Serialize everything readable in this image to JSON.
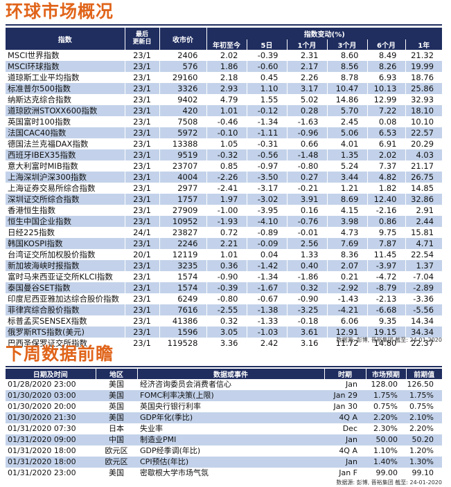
{
  "market": {
    "title": "环球市场概况",
    "headers": {
      "index": "指数",
      "last_update": "最后\n更新日",
      "close": "收市价",
      "change_group": "指数变动(%)",
      "ytd": "年初至今",
      "d5": "5日",
      "m1": "1个月",
      "m3": "3个月",
      "m6": "6个月",
      "y1": "1年"
    },
    "rows": [
      [
        "MSCI世界指数",
        "23/1",
        "2406",
        "2.02",
        "-0.39",
        "2.31",
        "8.60",
        "8.49",
        "21.32"
      ],
      [
        "MSCI环球指数",
        "23/1",
        "576",
        "1.86",
        "-0.60",
        "2.17",
        "8.56",
        "8.26",
        "19.99"
      ],
      [
        "道琼斯工业平均指数",
        "23/1",
        "29160",
        "2.18",
        "0.45",
        "2.26",
        "8.78",
        "6.93",
        "18.76"
      ],
      [
        "标准普尔500指数",
        "23/1",
        "3326",
        "2.93",
        "1.10",
        "3.17",
        "10.47",
        "10.13",
        "25.86"
      ],
      [
        "纳斯达克综合指数",
        "23/1",
        "9402",
        "4.79",
        "1.55",
        "5.02",
        "14.86",
        "12.99",
        "32.93"
      ],
      [
        "道琼欧洲STOXX600指数",
        "23/1",
        "420",
        "1.01",
        "-0.12",
        "0.28",
        "5.70",
        "7.22",
        "18.10"
      ],
      [
        "英国富时100指数",
        "23/1",
        "7508",
        "-0.46",
        "-1.34",
        "-1.63",
        "2.45",
        "0.08",
        "10.10"
      ],
      [
        "法国CAC40指数",
        "23/1",
        "5972",
        "-0.10",
        "-1.11",
        "-0.96",
        "5.06",
        "6.53",
        "22.57"
      ],
      [
        "德国法兰克福DAX指数",
        "23/1",
        "13388",
        "1.05",
        "-0.31",
        "0.66",
        "4.01",
        "6.91",
        "20.29"
      ],
      [
        "西班牙IBEX35指数",
        "23/1",
        "9519",
        "-0.32",
        "-0.56",
        "-1.48",
        "1.35",
        "2.02",
        "4.03"
      ],
      [
        "意大利富时MIB指数",
        "23/1",
        "23707",
        "0.85",
        "-0.97",
        "-0.80",
        "5.24",
        "7.37",
        "21.17"
      ],
      [
        "上海深圳沪深300指数",
        "23/1",
        "4004",
        "-2.26",
        "-3.50",
        "0.27",
        "3.44",
        "4.82",
        "26.75"
      ],
      [
        "上海证券交易所综合指数",
        "23/1",
        "2977",
        "-2.41",
        "-3.17",
        "-0.21",
        "1.21",
        "1.82",
        "14.85"
      ],
      [
        "深圳证交所综合指数",
        "23/1",
        "1757",
        "1.97",
        "-3.02",
        "3.91",
        "8.69",
        "12.40",
        "32.86"
      ],
      [
        "香港恒生指数",
        "23/1",
        "27909",
        "-1.00",
        "-3.95",
        "0.16",
        "4.15",
        "-2.16",
        "2.91"
      ],
      [
        "恒生中国企业指数",
        "23/1",
        "10952",
        "-1.93",
        "-4.10",
        "-0.76",
        "3.98",
        "0.86",
        "2.44"
      ],
      [
        "日经225指数",
        "24/1",
        "23827",
        "0.72",
        "-0.89",
        "-0.01",
        "4.73",
        "9.75",
        "15.81"
      ],
      [
        "韩国KOSPI指数",
        "23/1",
        "2246",
        "2.21",
        "-0.09",
        "2.56",
        "7.69",
        "7.87",
        "4.71"
      ],
      [
        "台湾证交所加权股价指数",
        "20/1",
        "12119",
        "1.01",
        "0.04",
        "1.33",
        "8.36",
        "11.45",
        "22.54"
      ],
      [
        "新加坡海峡时报指数",
        "23/1",
        "3235",
        "0.36",
        "-1.42",
        "0.40",
        "2.07",
        "-3.97",
        "1.37"
      ],
      [
        "富时马来西亚证交所KLCI指数",
        "23/1",
        "1574",
        "-0.90",
        "-1.34",
        "-1.86",
        "0.21",
        "-4.72",
        "-7.04"
      ],
      [
        "泰国曼谷SET指数",
        "23/1",
        "1574",
        "-0.39",
        "-1.67",
        "0.32",
        "-2.92",
        "-8.79",
        "-2.89"
      ],
      [
        "印度尼西亚雅加达综合股价指数",
        "23/1",
        "6249",
        "-0.80",
        "-0.67",
        "-0.90",
        "-1.43",
        "-2.13",
        "-3.36"
      ],
      [
        "菲律宾综合股价指数",
        "23/1",
        "7616",
        "-2.55",
        "-1.38",
        "-3.25",
        "-4.21",
        "-6.68",
        "-5.56"
      ],
      [
        "标普孟买SENSEX指数",
        "23/1",
        "41386",
        "0.32",
        "-1.33",
        "-0.18",
        "6.06",
        "9.35",
        "14.34"
      ],
      [
        "俄罗斯RTS指数(美元)",
        "23/1",
        "1596",
        "3.05",
        "-1.03",
        "3.61",
        "12.91",
        "19.15",
        "34.34"
      ],
      [
        "巴西圣保罗证交所指数",
        "23/1",
        "119528",
        "3.36",
        "2.42",
        "3.16",
        "11.72",
        "14.80",
        "22.37"
      ]
    ],
    "source": "数据源: 彭博, 晋裕集团 截至: 24-01-2020"
  },
  "week_ahead": {
    "title": "下周数据前瞻",
    "headers": {
      "datetime": "日期及时间",
      "region": "地区",
      "event": "数据或事件",
      "period": "时期",
      "forecast": "市场预期",
      "previous": "前期值"
    },
    "rows": [
      [
        "01/28/2020 23:00",
        "美国",
        "经济咨询委员会消费者信心",
        "Jan",
        "128.00",
        "126.50"
      ],
      [
        "01/30/2020 03:00",
        "美国",
        "FOMC利率决策(上限)",
        "Jan 29",
        "1.75%",
        "1.75%"
      ],
      [
        "01/30/2020 20:00",
        "英国",
        "英国央行银行利率",
        "Jan 30",
        "0.75%",
        "0.75%"
      ],
      [
        "01/30/2020 21:30",
        "美国",
        "GDP年化(季比)",
        "4Q A",
        "2.20%",
        "2.10%"
      ],
      [
        "01/31/2020 07:30",
        "日本",
        "失业率",
        "Dec",
        "2.30%",
        "2.20%"
      ],
      [
        "01/31/2020 09:00",
        "中国",
        "制造业PMI",
        "Jan",
        "50.00",
        "50.20"
      ],
      [
        "01/31/2020 18:00",
        "欧元区",
        "GDP经季调(年比)",
        "4Q A",
        "1.10%",
        "1.20%"
      ],
      [
        "01/31/2020 18:00",
        "欧元区",
        "CPI预估(年比)",
        "Jan",
        "1.40%",
        "1.30%"
      ],
      [
        "01/31/2020 23:00",
        "美国",
        "密歇根大学市场气氛",
        "Jan F",
        "99.00",
        "99.10"
      ]
    ],
    "source": "数据源: 彭博, 晋裕集团 截至: 24-01-2020"
  }
}
